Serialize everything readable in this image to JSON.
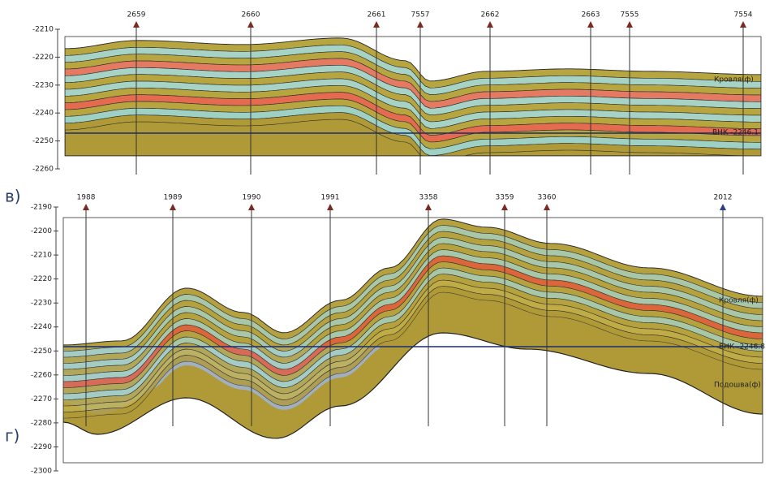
{
  "panels": [
    {
      "label": "в)",
      "yticks": [
        "-2210",
        "-2220",
        "-2230",
        "-2240",
        "-2250",
        "-2260"
      ],
      "wells": [
        "2659",
        "2660",
        "2661",
        "7557",
        "2662",
        "2663",
        "7555",
        "7554"
      ],
      "annotations": [
        "Кровля(ф)",
        "ВНК -2246.1"
      ]
    },
    {
      "label": "г)",
      "yticks": [
        "-2190",
        "-2200",
        "-2210",
        "-2220",
        "-2230",
        "-2240",
        "-2250",
        "-2260",
        "-2270",
        "-2280",
        "-2290",
        "-2300"
      ],
      "wells": [
        "1988",
        "1989",
        "1990",
        "1991",
        "3358",
        "3359",
        "3360",
        "2012"
      ],
      "annotations": [
        "Кровля(ф)",
        "ВНК -2246.8",
        "Подошва(ф)"
      ]
    }
  ]
}
